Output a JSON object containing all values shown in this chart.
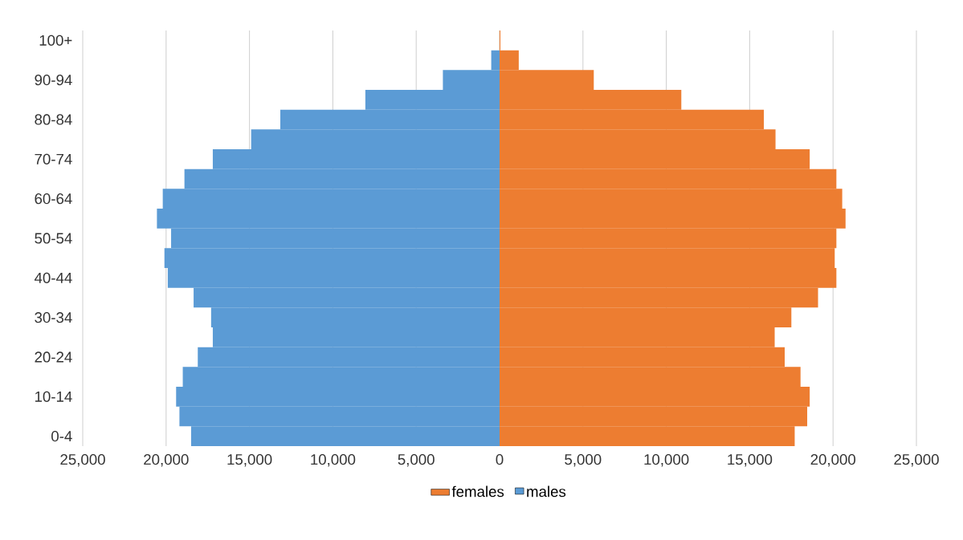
{
  "chart_data": {
    "type": "bar",
    "orientation": "horizontal",
    "categories": [
      "100+",
      null,
      "90-94",
      null,
      "80-84",
      null,
      "70-74",
      null,
      "60-64",
      null,
      "50-54",
      null,
      "40-44",
      null,
      "30-34",
      null,
      "20-24",
      null,
      "10-14",
      null,
      "0-4"
    ],
    "series": [
      {
        "name": "females",
        "color": "#ed7d31",
        "values": [
          50,
          1150,
          5650,
          10900,
          15850,
          16550,
          18600,
          20200,
          20550,
          20750,
          20200,
          20100,
          20200,
          19100,
          17500,
          16500,
          17100,
          18050,
          18600,
          18450,
          17700
        ]
      },
      {
        "name": "males",
        "color": "#5b9bd5",
        "values": [
          0,
          -500,
          -3400,
          -8050,
          -13150,
          -14900,
          -17200,
          -18900,
          -20200,
          -20550,
          -19700,
          -20100,
          -19900,
          -18350,
          -17300,
          -17200,
          -18100,
          -19000,
          -19400,
          -19200,
          -18500
        ]
      }
    ],
    "xlim": [
      -25000,
      25000
    ],
    "xticks": [
      {
        "value": -25000,
        "label": "25,000"
      },
      {
        "value": -20000,
        "label": "20,000"
      },
      {
        "value": -15000,
        "label": "15,000"
      },
      {
        "value": -10000,
        "label": "10,000"
      },
      {
        "value": -5000,
        "label": "5,000"
      },
      0,
      {
        "value": 5000,
        "label": "5,000"
      },
      {
        "value": 10000,
        "label": "10,000"
      },
      {
        "value": 15000,
        "label": "15,000"
      },
      {
        "value": 20000,
        "label": "20,000"
      },
      {
        "value": 25000,
        "label": "25,000"
      }
    ],
    "grid": "x",
    "legend": "bottom",
    "stacked": true
  }
}
